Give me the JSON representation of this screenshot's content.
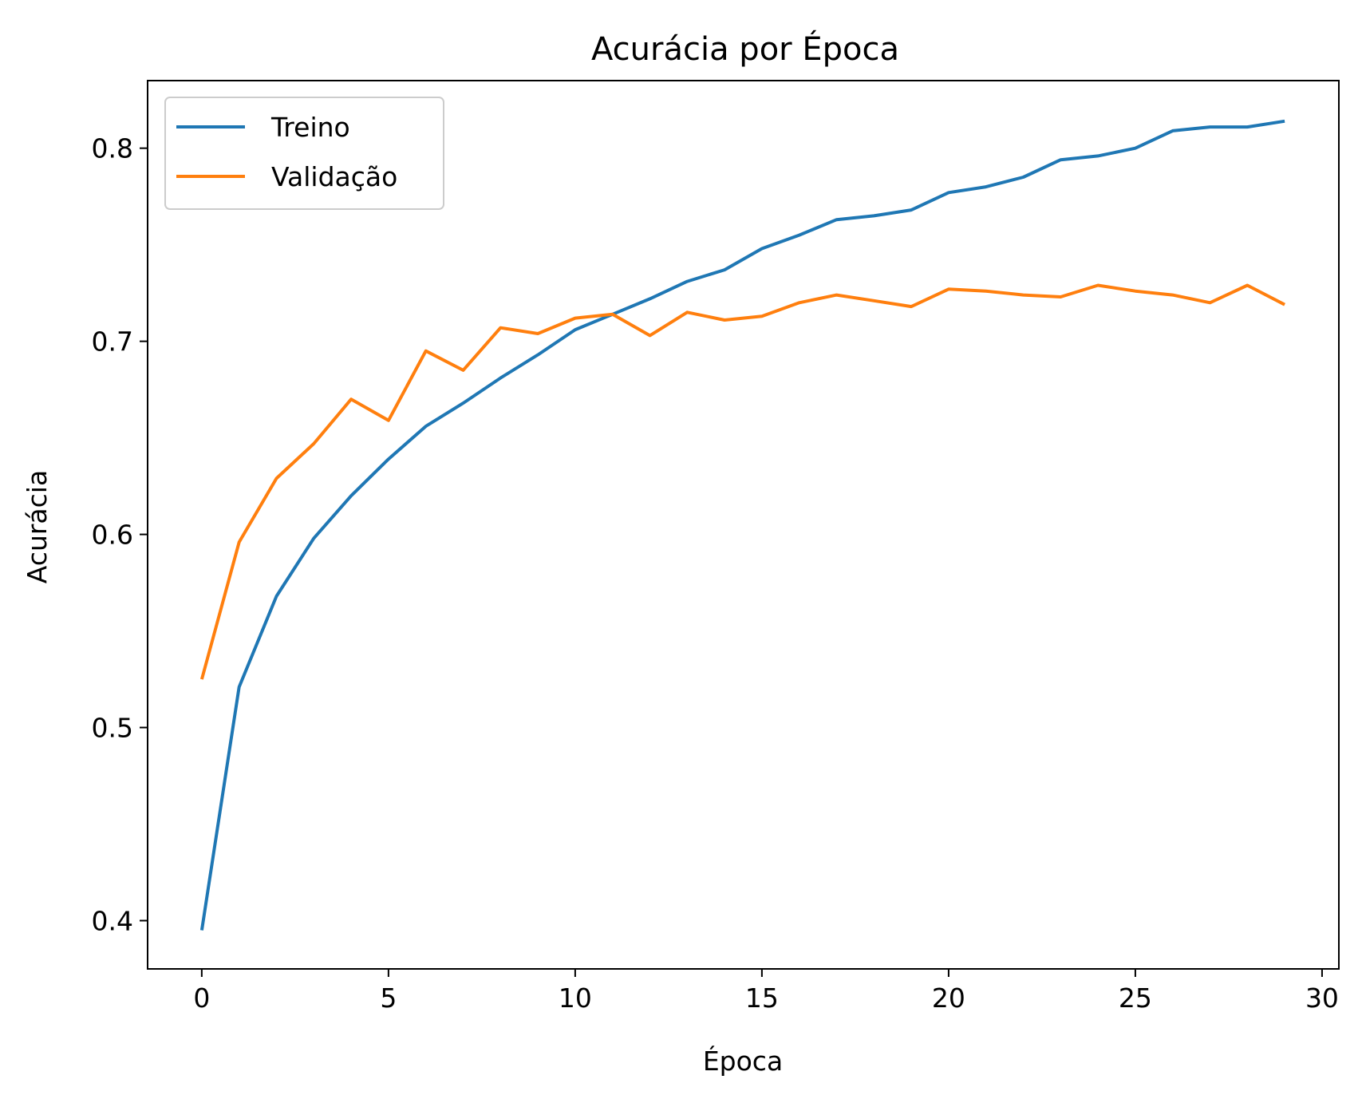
{
  "chart_data": {
    "type": "line",
    "title": "Acurácia por Época",
    "xlabel": "Época",
    "ylabel": "Acurácia",
    "xlim": [
      -1.45,
      30.45
    ],
    "ylim": [
      0.375,
      0.835
    ],
    "xticks": [
      0,
      5,
      10,
      15,
      20,
      25,
      30
    ],
    "yticks": [
      0.4,
      0.5,
      0.6,
      0.7,
      0.8
    ],
    "xtick_labels": [
      "0",
      "5",
      "10",
      "15",
      "20",
      "25",
      "30"
    ],
    "ytick_labels": [
      "0.4",
      "0.5",
      "0.6",
      "0.7",
      "0.8"
    ],
    "grid": false,
    "legend_position": "top-left",
    "x": [
      0,
      1,
      2,
      3,
      4,
      5,
      6,
      7,
      8,
      9,
      10,
      11,
      12,
      13,
      14,
      15,
      16,
      17,
      18,
      19,
      20,
      21,
      22,
      23,
      24,
      25,
      26,
      27,
      28,
      29
    ],
    "series": [
      {
        "name": "Treino",
        "color": "#1f77b4",
        "values": [
          0.395,
          0.521,
          0.568,
          0.598,
          0.62,
          0.639,
          0.656,
          0.668,
          0.681,
          0.693,
          0.706,
          0.714,
          0.722,
          0.731,
          0.737,
          0.748,
          0.755,
          0.763,
          0.765,
          0.768,
          0.777,
          0.78,
          0.785,
          0.794,
          0.796,
          0.8,
          0.809,
          0.811,
          0.811,
          0.814
        ]
      },
      {
        "name": "Validação",
        "color": "#ff7f0e",
        "values": [
          0.525,
          0.596,
          0.629,
          0.647,
          0.67,
          0.659,
          0.695,
          0.685,
          0.707,
          0.704,
          0.712,
          0.714,
          0.703,
          0.715,
          0.711,
          0.713,
          0.72,
          0.724,
          0.721,
          0.718,
          0.727,
          0.726,
          0.724,
          0.723,
          0.729,
          0.726,
          0.724,
          0.72,
          0.729,
          0.719
        ]
      }
    ]
  }
}
